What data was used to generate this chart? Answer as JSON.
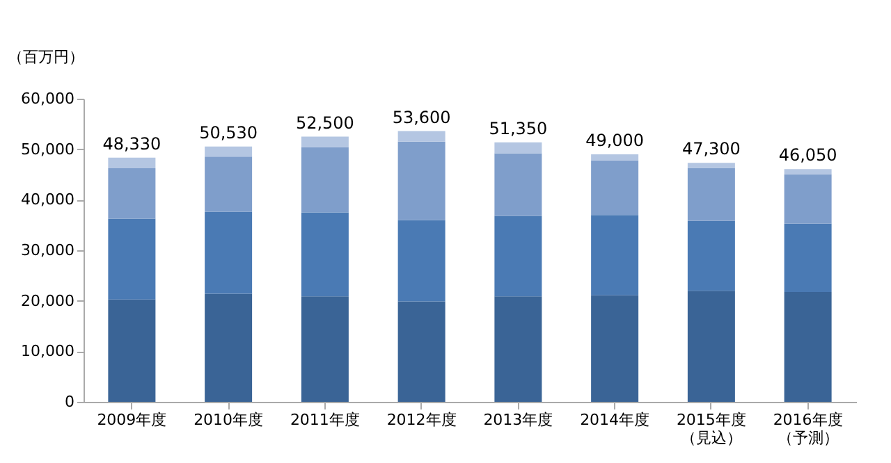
{
  "chart_data": {
    "type": "bar",
    "stacked": true,
    "ylabel": "（百万円）",
    "categories": [
      "2009年度",
      "2010年度",
      "2011年度",
      "2012年度",
      "2013年度",
      "2014年度",
      "2015年度（見込）",
      "2016年度（予測）"
    ],
    "series": [
      {
        "color": "#3a6496",
        "values": [
          20250,
          21400,
          20900,
          19900,
          20900,
          21100,
          22000,
          21750
        ]
      },
      {
        "color": "#4a7ab4",
        "values": [
          16000,
          16250,
          16600,
          16100,
          15900,
          15900,
          13800,
          13500
        ]
      },
      {
        "color": "#7f9ecb",
        "values": [
          10000,
          10900,
          12900,
          15500,
          12400,
          10800,
          10500,
          9800
        ]
      },
      {
        "color": "#b4c6e2",
        "values": [
          2080,
          1980,
          2100,
          2100,
          2150,
          1200,
          1000,
          1000
        ]
      }
    ],
    "totals": [
      "48,330",
      "50,530",
      "52,500",
      "53,600",
      "51,350",
      "49,000",
      "47,300",
      "46,050"
    ],
    "ylim": [
      0,
      60000
    ],
    "yticks": [
      0,
      {
        "value": 10000,
        "label": "10,000"
      },
      {
        "value": 20000,
        "label": "20,000"
      },
      {
        "value": 30000,
        "label": "30,000"
      },
      {
        "value": 40000,
        "label": "40,000"
      },
      {
        "value": 50000,
        "label": "50,000"
      },
      {
        "value": 60000,
        "label": "60,000"
      }
    ],
    "grid": false,
    "legend": false
  }
}
